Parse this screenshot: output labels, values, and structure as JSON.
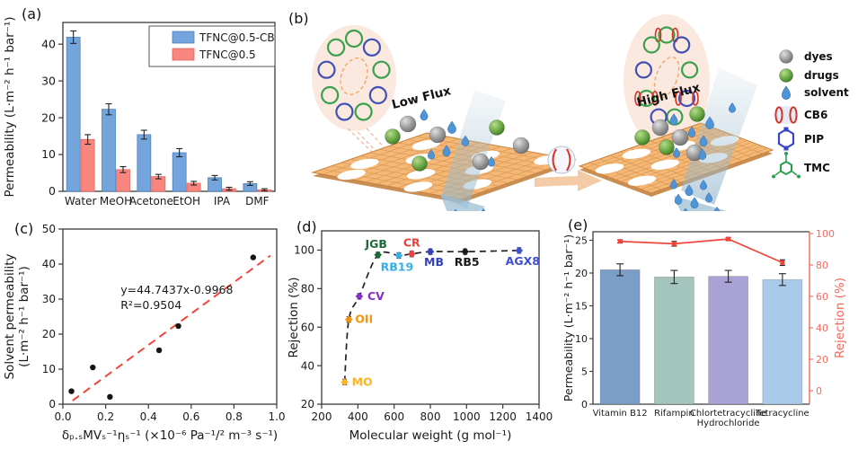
{
  "panel_a": {
    "label": "(a)",
    "chart_data": {
      "type": "bar",
      "categories": [
        "Water",
        "MeOH",
        "Acetone",
        "EtOH",
        "IPA",
        "DMF"
      ],
      "series": [
        {
          "name": "TFNC@0.5-CB",
          "color": "#74A4DC",
          "border": "#4E83BC",
          "values": [
            41.9,
            22.3,
            15.4,
            10.5,
            3.7,
            2.1
          ],
          "errors": [
            1.7,
            1.5,
            1.2,
            1.1,
            0.6,
            0.5
          ]
        },
        {
          "name": "TFNC@0.5",
          "color": "#F9867E",
          "border": "#E2675F",
          "values": [
            14.1,
            5.9,
            4.0,
            2.2,
            0.7,
            0.4
          ],
          "errors": [
            1.3,
            0.8,
            0.6,
            0.5,
            0.4,
            0.3
          ]
        }
      ],
      "ylabel": "Permeability (L·m⁻² h⁻¹ bar⁻¹)",
      "ylim": [
        0,
        45.9
      ],
      "yticks": [
        0,
        10,
        20,
        30,
        40
      ],
      "legend_position": "top-right",
      "grid": false
    }
  },
  "panel_b": {
    "label": "(b)",
    "low_flux": "Low Flux",
    "high_flux": "High Flux",
    "legend": [
      {
        "icon": "gray-sphere",
        "label": "dyes"
      },
      {
        "icon": "green-sphere",
        "label": "drugs"
      },
      {
        "icon": "blue-droplet",
        "label": "solvent"
      },
      {
        "icon": "cb6-barrel",
        "label": "CB6"
      },
      {
        "icon": "piperazine-ring",
        "label": "PIP"
      },
      {
        "icon": "trimesoyl-chloride",
        "label": "TMC"
      }
    ]
  },
  "panel_c": {
    "label": "(c)",
    "chart_data": {
      "type": "scatter",
      "x": [
        0.04,
        0.14,
        0.22,
        0.45,
        0.54,
        0.89
      ],
      "y": [
        3.7,
        10.5,
        2.1,
        15.4,
        22.3,
        41.9
      ],
      "fit_line": {
        "equation": "y=44.7437x-0.9968",
        "r_squared": "R²=0.9504",
        "slope": 44.7437,
        "intercept": -0.9968,
        "color": "#F3453A",
        "style": "dashed"
      },
      "marker_color": "#151515",
      "xlabel": "δₚ.ₛMVₛ⁻¹ηₛ⁻¹ (×10⁻⁶ Pa⁻¹/² m⁻³ s⁻¹)",
      "ylabel_line1": "Solvent permeability",
      "ylabel_line2": "(L·m⁻² h⁻¹ bar⁻¹)",
      "xlim": [
        0,
        1.0
      ],
      "ylim": [
        0,
        50
      ],
      "xticks": [
        "0.0",
        "0.2",
        "0.4",
        "0.6",
        "0.8",
        "1.0"
      ],
      "yticks": [
        0,
        10,
        20,
        30,
        40,
        50
      ],
      "grid": false
    }
  },
  "panel_d": {
    "label": "(d)",
    "chart_data": {
      "type": "scatter",
      "points": [
        {
          "name": "MO",
          "x": 327,
          "y": 31.5,
          "color": "#FFB424"
        },
        {
          "name": "OII",
          "x": 350,
          "y": 64.0,
          "color": "#F5930A"
        },
        {
          "name": "CV",
          "x": 408,
          "y": 76.0,
          "color": "#8330C9"
        },
        {
          "name": "JGB",
          "x": 511,
          "y": 97.5,
          "color": "#1B6B3A"
        },
        {
          "name": "RB19",
          "x": 626,
          "y": 97.2,
          "color": "#37AEE4"
        },
        {
          "name": "CR",
          "x": 697,
          "y": 98.0,
          "color": "#E8403A"
        },
        {
          "name": "MB",
          "x": 800,
          "y": 99.2,
          "color": "#3340C0"
        },
        {
          "name": "RB5",
          "x": 992,
          "y": 99.2,
          "color": "#1A1A1A"
        },
        {
          "name": "AGX8",
          "x": 1290,
          "y": 99.8,
          "color": "#3E4FD0"
        }
      ],
      "trend_style": "dashed",
      "xlabel": "Molecular weight (g mol⁻¹)",
      "ylabel": "Rejection (%)",
      "xlim": [
        200,
        1400
      ],
      "ylim": [
        20,
        110
      ],
      "xticks": [
        200,
        400,
        600,
        800,
        1000,
        1200,
        1400
      ],
      "yticks": [
        20,
        40,
        60,
        80,
        100
      ],
      "grid": false
    }
  },
  "panel_e": {
    "label": "(e)",
    "chart_data": {
      "type": "bar+line",
      "categories": [
        "Vitamin B12",
        "Rifampin",
        "Chlortetracycline Hydrochloride",
        "Tetracycline"
      ],
      "category_lines": [
        [
          "Vitamin B12"
        ],
        [
          "Rifampin"
        ],
        [
          "Chlortetracycline",
          "Hydrochloride"
        ],
        [
          "Tetracycline"
        ]
      ],
      "bars": {
        "values": [
          20.5,
          19.4,
          19.5,
          19.0
        ],
        "errors": [
          0.9,
          1.0,
          0.9,
          0.9
        ],
        "colors": [
          "#7B9EC9",
          "#A3C5BD",
          "#A8A2D6",
          "#A9CBE9"
        ]
      },
      "line": {
        "name": "Rejection",
        "values": [
          95,
          93.5,
          96.5,
          81.5
        ],
        "errors": [
          1.0,
          1.5,
          1.0,
          1.8
        ],
        "color": "#F0463A"
      },
      "ylabel_left": "Permeability (L·m⁻² h⁻¹ bar⁻¹)",
      "ylabel_right": "Rejection (%)",
      "right_axis_color": "#F4695F",
      "ylim_left": [
        0,
        26.3
      ],
      "ylim_right": [
        0,
        110
      ],
      "yticks_left": [
        0,
        5,
        10,
        15,
        20,
        25
      ],
      "yticks_right": [
        0,
        20,
        40,
        60,
        80,
        100
      ]
    }
  }
}
